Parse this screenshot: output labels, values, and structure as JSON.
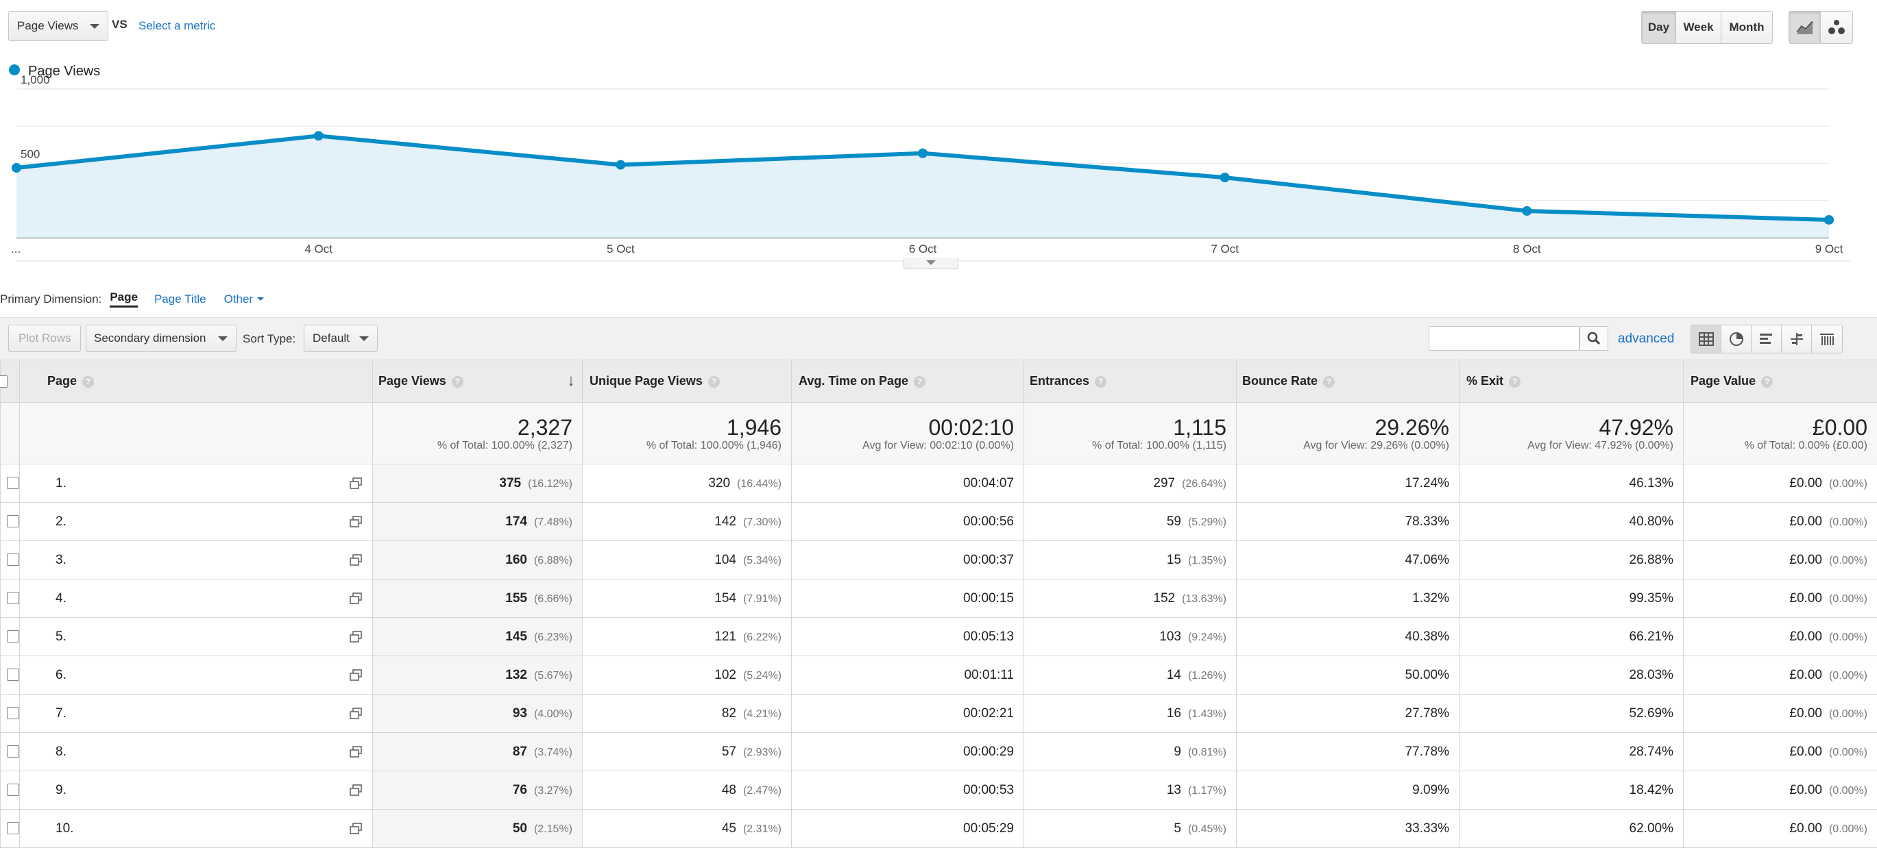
{
  "metric_selector": {
    "selected": "Page Views",
    "vs_label": "VS",
    "second_metric_link": "Select a metric"
  },
  "period_buttons": [
    "Day",
    "Week",
    "Month"
  ],
  "active_period": "Day",
  "chart_data": {
    "type": "area",
    "series": [
      {
        "name": "Page Views",
        "values": [
          470,
          685,
          490,
          568,
          405,
          180,
          120
        ]
      }
    ],
    "categories": [
      "...",
      "4 Oct",
      "5 Oct",
      "6 Oct",
      "7 Oct",
      "8 Oct",
      "9 Oct"
    ],
    "y_ticks": [
      {
        "value": 500,
        "label": "500"
      },
      {
        "value": 1000,
        "label": "1,000"
      }
    ],
    "ylim": [
      0,
      1000
    ],
    "grid": true,
    "legend_position": "top-left",
    "color": "#058dc7",
    "fill_color": "#e3f1f8"
  },
  "dimension_bar": {
    "label": "Primary Dimension:",
    "options": [
      "Page",
      "Page Title",
      "Other"
    ],
    "active": "Page"
  },
  "toolbar": {
    "plot_rows": "Plot Rows",
    "secondary_dimension": "Secondary dimension",
    "sort_type_label": "Sort Type:",
    "sort_type_value": "Default",
    "search_placeholder": "",
    "advanced_link": "advanced"
  },
  "table": {
    "columns": [
      "Page",
      "Page Views",
      "Unique Page Views",
      "Avg. Time on Page",
      "Entrances",
      "Bounce Rate",
      "% Exit",
      "Page Value"
    ],
    "sorted_column": "Page Views",
    "totals": [
      {
        "value": "2,327",
        "sub": "% of Total: 100.00% (2,327)"
      },
      {
        "value": "1,946",
        "sub": "% of Total: 100.00% (1,946)"
      },
      {
        "value": "00:02:10",
        "sub": "Avg for View: 00:02:10 (0.00%)"
      },
      {
        "value": "1,115",
        "sub": "% of Total: 100.00% (1,115)"
      },
      {
        "value": "29.26%",
        "sub": "Avg for View: 29.26% (0.00%)"
      },
      {
        "value": "47.92%",
        "sub": "Avg for View: 47.92% (0.00%)"
      },
      {
        "value": "£0.00",
        "sub": "% of Total: 0.00% (£0.00)"
      }
    ],
    "rows": [
      {
        "idx": "1.",
        "pv": "375",
        "pv_pct": "(16.12%)",
        "upv": "320",
        "upv_pct": "(16.44%)",
        "time": "00:04:07",
        "ent": "297",
        "ent_pct": "(26.64%)",
        "bounce": "17.24%",
        "exit": "46.13%",
        "value": "£0.00",
        "value_pct": "(0.00%)"
      },
      {
        "idx": "2.",
        "pv": "174",
        "pv_pct": "(7.48%)",
        "upv": "142",
        "upv_pct": "(7.30%)",
        "time": "00:00:56",
        "ent": "59",
        "ent_pct": "(5.29%)",
        "bounce": "78.33%",
        "exit": "40.80%",
        "value": "£0.00",
        "value_pct": "(0.00%)"
      },
      {
        "idx": "3.",
        "pv": "160",
        "pv_pct": "(6.88%)",
        "upv": "104",
        "upv_pct": "(5.34%)",
        "time": "00:00:37",
        "ent": "15",
        "ent_pct": "(1.35%)",
        "bounce": "47.06%",
        "exit": "26.88%",
        "value": "£0.00",
        "value_pct": "(0.00%)"
      },
      {
        "idx": "4.",
        "pv": "155",
        "pv_pct": "(6.66%)",
        "upv": "154",
        "upv_pct": "(7.91%)",
        "time": "00:00:15",
        "ent": "152",
        "ent_pct": "(13.63%)",
        "bounce": "1.32%",
        "exit": "99.35%",
        "value": "£0.00",
        "value_pct": "(0.00%)"
      },
      {
        "idx": "5.",
        "pv": "145",
        "pv_pct": "(6.23%)",
        "upv": "121",
        "upv_pct": "(6.22%)",
        "time": "00:05:13",
        "ent": "103",
        "ent_pct": "(9.24%)",
        "bounce": "40.38%",
        "exit": "66.21%",
        "value": "£0.00",
        "value_pct": "(0.00%)"
      },
      {
        "idx": "6.",
        "pv": "132",
        "pv_pct": "(5.67%)",
        "upv": "102",
        "upv_pct": "(5.24%)",
        "time": "00:01:11",
        "ent": "14",
        "ent_pct": "(1.26%)",
        "bounce": "50.00%",
        "exit": "28.03%",
        "value": "£0.00",
        "value_pct": "(0.00%)"
      },
      {
        "idx": "7.",
        "pv": "93",
        "pv_pct": "(4.00%)",
        "upv": "82",
        "upv_pct": "(4.21%)",
        "time": "00:02:21",
        "ent": "16",
        "ent_pct": "(1.43%)",
        "bounce": "27.78%",
        "exit": "52.69%",
        "value": "£0.00",
        "value_pct": "(0.00%)"
      },
      {
        "idx": "8.",
        "pv": "87",
        "pv_pct": "(3.74%)",
        "upv": "57",
        "upv_pct": "(2.93%)",
        "time": "00:00:29",
        "ent": "9",
        "ent_pct": "(0.81%)",
        "bounce": "77.78%",
        "exit": "28.74%",
        "value": "£0.00",
        "value_pct": "(0.00%)"
      },
      {
        "idx": "9.",
        "pv": "76",
        "pv_pct": "(3.27%)",
        "upv": "48",
        "upv_pct": "(2.47%)",
        "time": "00:00:53",
        "ent": "13",
        "ent_pct": "(1.17%)",
        "bounce": "9.09%",
        "exit": "18.42%",
        "value": "£0.00",
        "value_pct": "(0.00%)"
      },
      {
        "idx": "10.",
        "pv": "50",
        "pv_pct": "(2.15%)",
        "upv": "45",
        "upv_pct": "(2.31%)",
        "time": "00:05:29",
        "ent": "5",
        "ent_pct": "(0.45%)",
        "bounce": "33.33%",
        "exit": "62.00%",
        "value": "£0.00",
        "value_pct": "(0.00%)"
      }
    ]
  }
}
